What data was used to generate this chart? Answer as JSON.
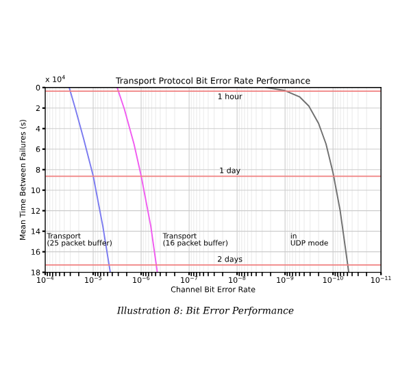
{
  "chart_data": {
    "type": "line",
    "title": "Transport Protocol Bit Error Rate Performance",
    "xlabel": "Channel Bit Error Rate",
    "ylabel": "Mean Time Between Failures (s)",
    "log": "x",
    "xlim": [
      0.0001,
      1e-11
    ],
    "xticks": [
      {
        "value": 0.0001,
        "label": "10$^{−4}$"
      },
      {
        "value": 1e-05,
        "label": "10$^{−5}$"
      },
      {
        "value": 1e-06,
        "label": "10$^{−6}$"
      },
      {
        "value": 1e-07,
        "label": "10$^{−7}$"
      },
      {
        "value": 1e-08,
        "label": "10$^{−8}$"
      },
      {
        "value": 1e-09,
        "label": "10$^{−9}$"
      },
      {
        "value": 1e-10,
        "label": "10$^{−10}$"
      },
      {
        "value": 1e-11,
        "label": "10$^{−11}$"
      }
    ],
    "ylim": [
      18,
      0
    ],
    "yticks": [
      0,
      2,
      4,
      6,
      8,
      10,
      12,
      14,
      16,
      18
    ],
    "grid": true,
    "marker": "none",
    "line_style": "solid",
    "series": [
      {
        "color": "#7b7bf0",
        "x": [
          3.16e-05,
          2.34e-05,
          1.58e-05,
          1e-05,
          6.3e-06,
          4.4e-06
        ],
        "values": [
          0,
          2.1,
          5,
          8.6,
          13.5,
          18
        ]
      },
      {
        "color": "#f05cf0",
        "x": [
          3.16e-06,
          2.24e-06,
          1.41e-06,
          1e-06,
          6.3e-07,
          4.6e-07
        ],
        "values": [
          0,
          2.1,
          5.5,
          8.6,
          13.5,
          18
        ]
      },
      {
        "color": "#707070",
        "x": [
          2.5e-09,
          1e-09,
          5e-10,
          3.2e-10,
          2e-10,
          1.4e-10,
          1e-10,
          7.1e-11,
          4.7e-11
        ],
        "values": [
          0,
          0.3,
          0.9,
          1.8,
          3.5,
          5.5,
          8.3,
          12,
          18
        ]
      }
    ],
    "ref_lines": [
      {
        "axis": "y",
        "value": 0.36,
        "label": "1 hour",
        "color": "#f08080"
      },
      {
        "axis": "y",
        "value": 8.64,
        "label": "1 day",
        "color": "#f08080"
      },
      {
        "axis": "y",
        "value": 17.28,
        "label": "2 days",
        "color": "#f08080"
      }
    ],
    "annotations": [
      "x 10$^{4}$",
      "Transport\n(25 packet buffer)",
      "Transport\n(16 packet buffer)",
      "in\nUDP mode",
      "Illustration 8: Bit Error Performance"
    ]
  }
}
